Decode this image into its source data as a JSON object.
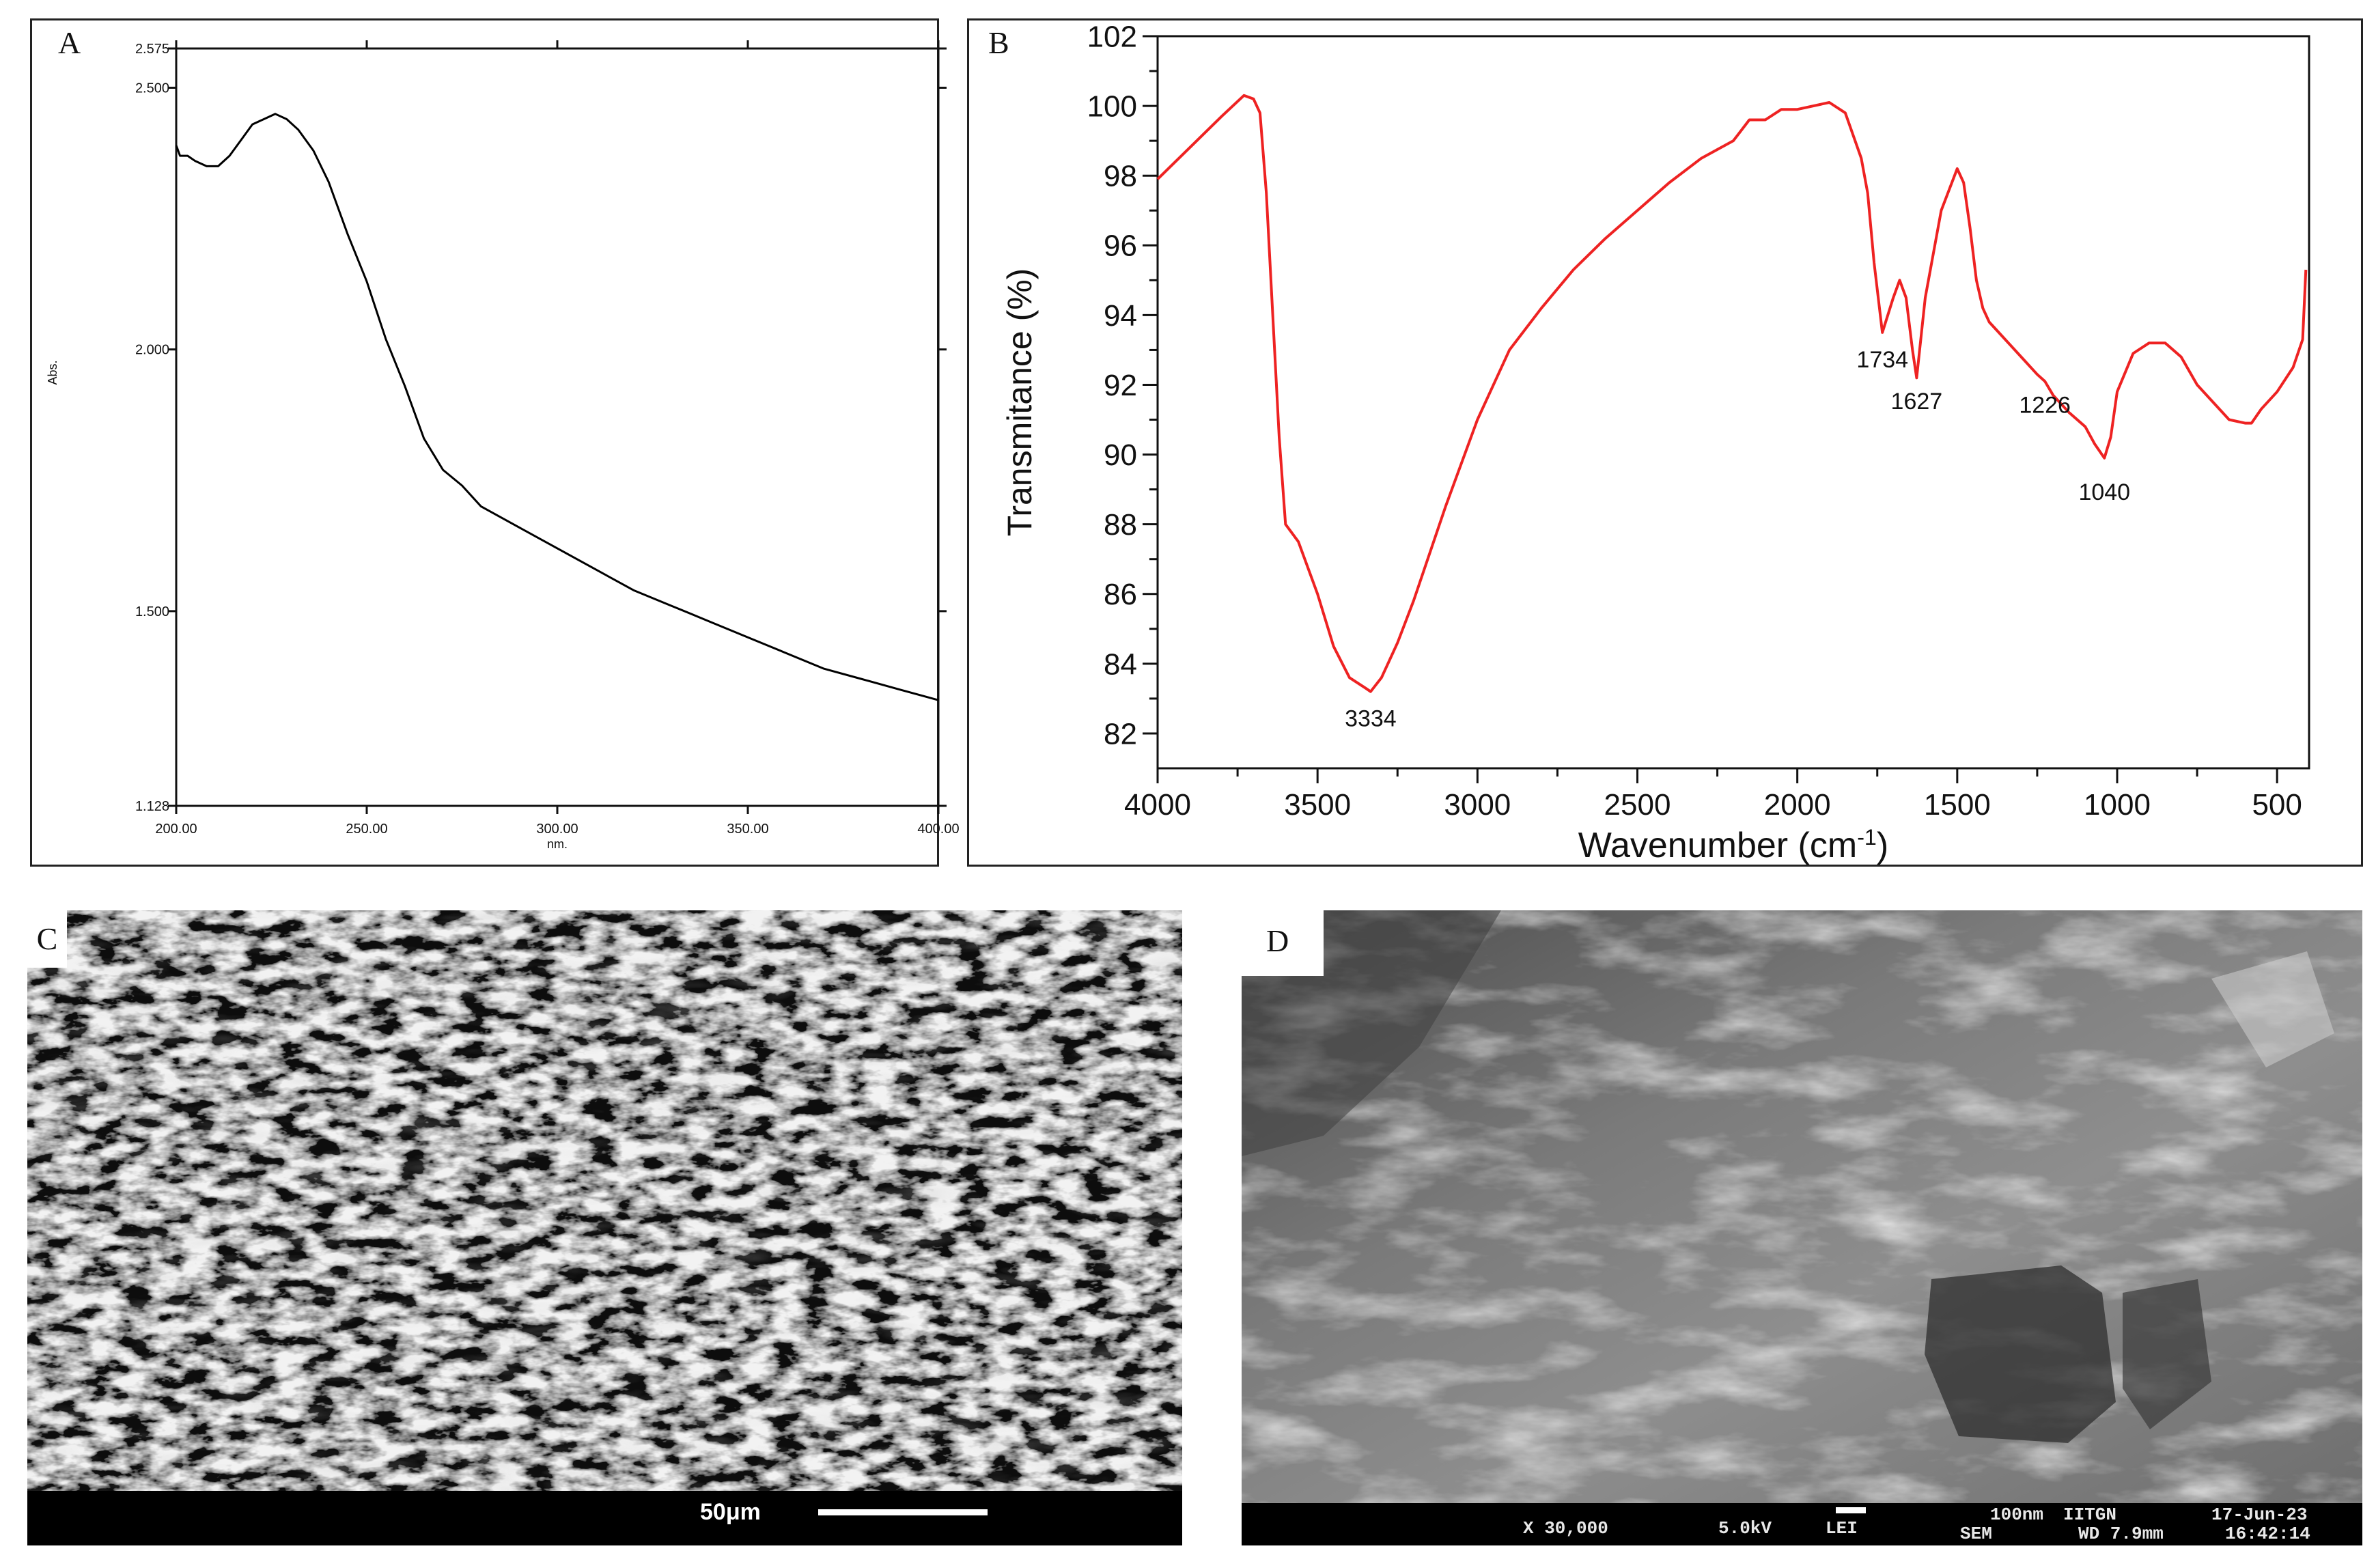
{
  "panels": {
    "a": {
      "letter": "A"
    },
    "b": {
      "letter": "B"
    },
    "c": {
      "letter": "C",
      "scale_label": "50μm"
    },
    "d": {
      "letter": "D",
      "magnification": "X 30,000",
      "voltage": "5.0kV",
      "detector": "LEI",
      "scale_label": "100nm",
      "institute": "IITGN",
      "mode": "SEM",
      "working_distance": "WD 7.9mm",
      "date": "17-Jun-23",
      "time": "16:42:14"
    }
  },
  "chart_data": [
    {
      "panel": "A",
      "type": "line",
      "title": "",
      "xlabel": "nm.",
      "ylabel": "Abs.",
      "xlim": [
        200,
        400
      ],
      "ylim": [
        1.128,
        2.575
      ],
      "x_ticks": [
        "200.00",
        "250.00",
        "300.00",
        "350.00",
        "400.00"
      ],
      "x_tick_values": [
        200,
        250,
        300,
        350,
        400
      ],
      "y_ticks": [
        "1.128",
        "1.500",
        "2.000",
        "2.500",
        "2.575"
      ],
      "y_tick_values": [
        1.128,
        1.5,
        2.0,
        2.5,
        2.575
      ],
      "line_color": "#000000",
      "series": [
        {
          "x": [
            200,
            201,
            203,
            205,
            208,
            211,
            214,
            217,
            220,
            223,
            226,
            229,
            232,
            236,
            240,
            245,
            250,
            255,
            260,
            265,
            270,
            275,
            280,
            290,
            300,
            310,
            320,
            330,
            340,
            350,
            360,
            370,
            380,
            390,
            400
          ],
          "y": [
            2.39,
            2.37,
            2.37,
            2.36,
            2.35,
            2.35,
            2.37,
            2.4,
            2.43,
            2.44,
            2.45,
            2.44,
            2.42,
            2.38,
            2.32,
            2.22,
            2.13,
            2.02,
            1.93,
            1.83,
            1.77,
            1.74,
            1.7,
            1.66,
            1.62,
            1.58,
            1.54,
            1.51,
            1.48,
            1.45,
            1.42,
            1.39,
            1.37,
            1.35,
            1.33
          ]
        }
      ]
    },
    {
      "panel": "B",
      "type": "line",
      "title": "",
      "xlabel": "Wavenumber (cm",
      "xlabel_sup": "-1",
      "xlabel_end": ")",
      "ylabel": "Transmitance (%)",
      "xlim": [
        4000,
        400
      ],
      "ylim": [
        81,
        102
      ],
      "x_ticks": [
        "4000",
        "3500",
        "3000",
        "2500",
        "2000",
        "1500",
        "1000",
        "500"
      ],
      "x_tick_values": [
        4000,
        3500,
        3000,
        2500,
        2000,
        1500,
        1000,
        500
      ],
      "y_ticks": [
        "82",
        "84",
        "86",
        "88",
        "90",
        "92",
        "94",
        "96",
        "98",
        "100",
        "102"
      ],
      "y_tick_values": [
        82,
        84,
        86,
        88,
        90,
        92,
        94,
        96,
        98,
        100,
        102
      ],
      "line_color": "#ee2222",
      "annotations": [
        {
          "text": "3334",
          "x": 3334,
          "y": 82.2
        },
        {
          "text": "1734",
          "x": 1734,
          "y": 92.5
        },
        {
          "text": "1627",
          "x": 1627,
          "y": 91.3
        },
        {
          "text": "1226",
          "x": 1226,
          "y": 91.2
        },
        {
          "text": "1040",
          "x": 1040,
          "y": 88.7
        }
      ],
      "series": [
        {
          "x": [
            4000,
            3900,
            3800,
            3730,
            3700,
            3680,
            3660,
            3640,
            3620,
            3600,
            3560,
            3500,
            3450,
            3400,
            3350,
            3334,
            3300,
            3250,
            3200,
            3100,
            3000,
            2900,
            2800,
            2700,
            2600,
            2500,
            2400,
            2300,
            2200,
            2150,
            2100,
            2050,
            2000,
            1900,
            1850,
            1800,
            1780,
            1760,
            1734,
            1700,
            1680,
            1660,
            1640,
            1627,
            1600,
            1550,
            1500,
            1480,
            1460,
            1440,
            1420,
            1400,
            1350,
            1300,
            1250,
            1226,
            1200,
            1150,
            1100,
            1070,
            1040,
            1020,
            1000,
            950,
            900,
            850,
            800,
            750,
            700,
            650,
            600,
            580,
            550,
            500,
            450,
            420,
            410
          ],
          "y": [
            97.9,
            98.8,
            99.7,
            100.3,
            100.2,
            99.8,
            97.5,
            94.0,
            90.5,
            88.0,
            87.5,
            86.0,
            84.5,
            83.6,
            83.3,
            83.2,
            83.6,
            84.6,
            85.8,
            88.5,
            91.0,
            93.0,
            94.2,
            95.3,
            96.2,
            97.0,
            97.8,
            98.5,
            99.0,
            99.6,
            99.6,
            99.9,
            99.9,
            100.1,
            99.8,
            98.5,
            97.5,
            95.5,
            93.5,
            94.5,
            95.0,
            94.5,
            93.0,
            92.2,
            94.5,
            97.0,
            98.2,
            97.8,
            96.5,
            95.0,
            94.2,
            93.8,
            93.3,
            92.8,
            92.3,
            92.1,
            91.7,
            91.2,
            90.8,
            90.3,
            89.9,
            90.5,
            91.8,
            92.9,
            93.2,
            93.2,
            92.8,
            92.0,
            91.5,
            91.0,
            90.9,
            90.9,
            91.3,
            91.8,
            92.5,
            93.3,
            95.3
          ]
        }
      ]
    }
  ]
}
